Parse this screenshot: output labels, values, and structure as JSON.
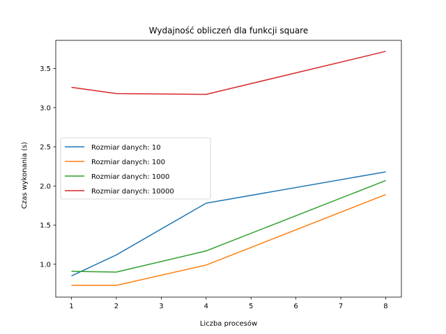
{
  "chart_data": {
    "type": "line",
    "title": "Wydajność obliczeń dla funkcji square",
    "xlabel": "Liczba procesów",
    "ylabel": "Czas wykonania (s)",
    "x": [
      1,
      2,
      4,
      8
    ],
    "xlim": [
      0.65,
      8.35
    ],
    "ylim": [
      0.58,
      3.86
    ],
    "xticks": [
      1,
      2,
      3,
      4,
      5,
      6,
      7,
      8
    ],
    "yticks": [
      1.0,
      1.5,
      2.0,
      2.5,
      3.0,
      3.5
    ],
    "xtick_labels": [
      "1",
      "2",
      "3",
      "4",
      "5",
      "6",
      "7",
      "8"
    ],
    "ytick_labels": [
      "1.0",
      "1.5",
      "2.0",
      "2.5",
      "3.0",
      "3.5"
    ],
    "legend_position": "center-left",
    "grid": false,
    "series": [
      {
        "name": "Rozmiar danych: 10",
        "color": "#1f77b4",
        "values": [
          0.85,
          1.12,
          1.78,
          2.18
        ]
      },
      {
        "name": "Rozmiar danych: 100",
        "color": "#ff7f0e",
        "values": [
          0.73,
          0.73,
          0.99,
          1.89
        ]
      },
      {
        "name": "Rozmiar danych: 1000",
        "color": "#2ca02c",
        "values": [
          0.91,
          0.9,
          1.17,
          2.07
        ]
      },
      {
        "name": "Rozmiar danych: 10000",
        "color": "#d62728",
        "values": [
          3.26,
          3.18,
          3.17,
          3.72
        ]
      }
    ]
  }
}
